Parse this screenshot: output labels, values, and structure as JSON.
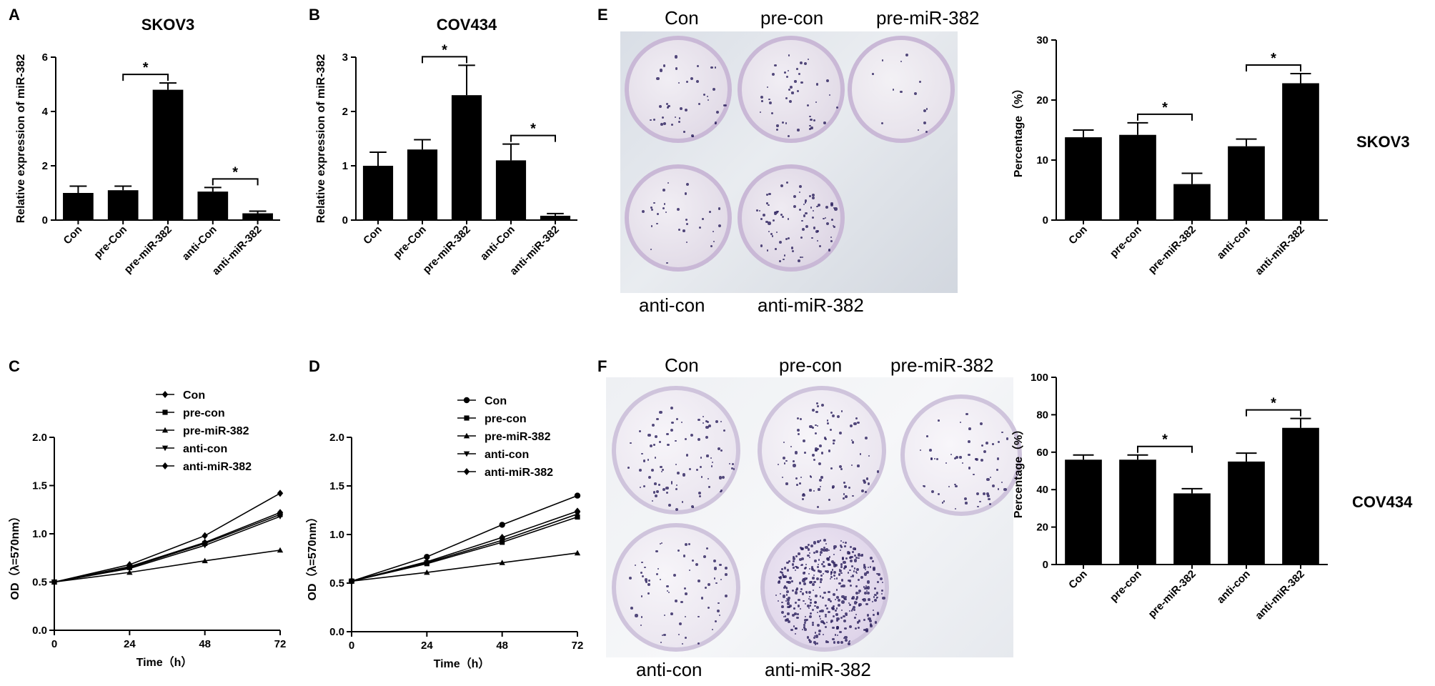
{
  "panels": {
    "A": {
      "letter": "A"
    },
    "B": {
      "letter": "B"
    },
    "C": {
      "letter": "C"
    },
    "D": {
      "letter": "D"
    },
    "E": {
      "letter": "E",
      "plate_labels": [
        "Con",
        "pre-con",
        "pre-miR-382",
        "anti-con",
        "anti-miR-382"
      ],
      "side_label": "SKOV3"
    },
    "F": {
      "letter": "F",
      "plate_labels": [
        "Con",
        "pre-con",
        "pre-miR-382",
        "anti-con",
        "anti-miR-382"
      ],
      "side_label": "COV434"
    }
  },
  "chart_data": [
    {
      "id": "A",
      "type": "bar",
      "title": "SKOV3",
      "categories": [
        "Con",
        "pre-Con",
        "pre-miR-382",
        "anti-Con",
        "anti-miR-382"
      ],
      "values": [
        1.0,
        1.1,
        4.8,
        1.05,
        0.25
      ],
      "errors": [
        0.25,
        0.15,
        0.25,
        0.15,
        0.08
      ],
      "ylabel": "Relative expression of miR-382",
      "xlabel": "",
      "ylim": [
        0,
        6
      ],
      "yticks": [
        0,
        2,
        4,
        6
      ],
      "significance": [
        {
          "from": 1,
          "to": 2,
          "label": "*"
        },
        {
          "from": 3,
          "to": 4,
          "label": "*"
        }
      ]
    },
    {
      "id": "B",
      "type": "bar",
      "title": "COV434",
      "categories": [
        "Con",
        "pre-Con",
        "pre-miR-382",
        "anti-Con",
        "anti-miR-382"
      ],
      "values": [
        1.0,
        1.3,
        2.3,
        1.1,
        0.08
      ],
      "errors": [
        0.25,
        0.18,
        0.55,
        0.3,
        0.04
      ],
      "ylabel": "Relative expression of miR-382",
      "xlabel": "",
      "ylim": [
        0,
        3
      ],
      "yticks": [
        0,
        1,
        2,
        3
      ],
      "significance": [
        {
          "from": 1,
          "to": 2,
          "label": "*"
        },
        {
          "from": 3,
          "to": 4,
          "label": "*"
        }
      ]
    },
    {
      "id": "C",
      "type": "line",
      "x": [
        0,
        24,
        48,
        72
      ],
      "xticks": [
        0,
        24,
        48,
        72
      ],
      "ylim": [
        0,
        2.0
      ],
      "yticks": [
        "0.0",
        "0.5",
        "1.0",
        "1.5",
        "2.0"
      ],
      "xlabel": "Time（h）",
      "ylabel": "OD（λ=570nm）",
      "legend": "top-center",
      "series": [
        {
          "name": "Con",
          "marker": "diamond",
          "values": [
            0.5,
            0.68,
            0.98,
            1.42
          ]
        },
        {
          "name": "pre-con",
          "marker": "square",
          "values": [
            0.5,
            0.65,
            0.9,
            1.2
          ]
        },
        {
          "name": "pre-miR-382",
          "marker": "triangle",
          "values": [
            0.5,
            0.6,
            0.72,
            0.83
          ]
        },
        {
          "name": "anti-con",
          "marker": "triangle-down",
          "values": [
            0.5,
            0.64,
            0.88,
            1.18
          ]
        },
        {
          "name": "anti-miR-382",
          "marker": "diamond",
          "values": [
            0.5,
            0.66,
            0.91,
            1.22
          ]
        }
      ]
    },
    {
      "id": "D",
      "type": "line",
      "x": [
        0,
        24,
        48,
        72
      ],
      "xticks": [
        0,
        24,
        48,
        72
      ],
      "ylim": [
        0,
        2.0
      ],
      "yticks": [
        "0.0",
        "0.5",
        "1.0",
        "1.5",
        "2.0"
      ],
      "xlabel": "Time（h）",
      "ylabel": "OD（λ=570nm）",
      "legend": "top-right",
      "series": [
        {
          "name": "Con",
          "marker": "circle",
          "values": [
            0.52,
            0.77,
            1.1,
            1.4
          ]
        },
        {
          "name": "pre-con",
          "marker": "square",
          "values": [
            0.52,
            0.7,
            0.92,
            1.18
          ]
        },
        {
          "name": "pre-miR-382",
          "marker": "triangle",
          "values": [
            0.52,
            0.61,
            0.71,
            0.81
          ]
        },
        {
          "name": "anti-con",
          "marker": "triangle-down",
          "values": [
            0.52,
            0.71,
            0.94,
            1.21
          ]
        },
        {
          "name": "anti-miR-382",
          "marker": "diamond",
          "values": [
            0.52,
            0.72,
            0.97,
            1.24
          ]
        }
      ]
    },
    {
      "id": "E",
      "type": "bar",
      "categories": [
        "Con",
        "pre-con",
        "pre-miR-382",
        "anti-con",
        "anti-miR-382"
      ],
      "values": [
        13.8,
        14.2,
        6.0,
        12.3,
        22.8
      ],
      "errors": [
        1.2,
        2.0,
        1.8,
        1.2,
        1.6
      ],
      "ylabel": "Percentage（%）",
      "xlabel": "",
      "ylim": [
        0,
        30
      ],
      "yticks": [
        0,
        10,
        20,
        30
      ],
      "significance": [
        {
          "from": 1,
          "to": 2,
          "label": "*"
        },
        {
          "from": 3,
          "to": 4,
          "label": "*"
        }
      ]
    },
    {
      "id": "F",
      "type": "bar",
      "categories": [
        "Con",
        "pre-con",
        "pre-miR-382",
        "anti-con",
        "anti-miR-382"
      ],
      "values": [
        56,
        56,
        38,
        55,
        73
      ],
      "errors": [
        2.5,
        2.5,
        2.5,
        4.5,
        5
      ],
      "ylabel": "Percentage（%）",
      "xlabel": "",
      "ylim": [
        0,
        100
      ],
      "yticks": [
        0,
        20,
        40,
        60,
        80,
        100
      ],
      "significance": [
        {
          "from": 1,
          "to": 2,
          "label": "*"
        },
        {
          "from": 3,
          "to": 4,
          "label": "*"
        }
      ]
    }
  ]
}
